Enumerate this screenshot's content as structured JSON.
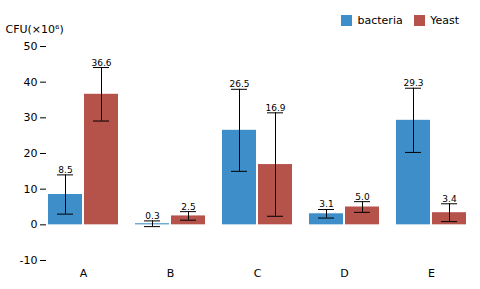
{
  "chart_data": {
    "type": "bar",
    "ylabel": "CFU(×10⁶)",
    "categories": [
      "A",
      "B",
      "C",
      "D",
      "E"
    ],
    "series": [
      {
        "name": "bacteria",
        "color": "#3D8EC9",
        "values": [
          8.5,
          0.3,
          26.5,
          3.1,
          29.3
        ],
        "errors": [
          5.5,
          0.8,
          11.5,
          1.2,
          9.0
        ],
        "value_labels": [
          "8.5",
          "0.3",
          "26.5",
          "3.1",
          "29.3"
        ]
      },
      {
        "name": "Yeast",
        "color": "#B5524A",
        "values": [
          36.6,
          2.5,
          16.9,
          5.0,
          3.4
        ],
        "errors": [
          7.5,
          1.2,
          14.5,
          1.5,
          2.5
        ],
        "value_labels": [
          "36.6",
          "2.5",
          "16.9",
          "5.0",
          "3.4"
        ]
      }
    ],
    "ylim": [
      -10,
      50
    ],
    "yticks": [
      -10,
      0,
      10,
      20,
      30,
      40,
      50
    ],
    "grid": false,
    "legend": "upper right",
    "data_labels": true
  }
}
